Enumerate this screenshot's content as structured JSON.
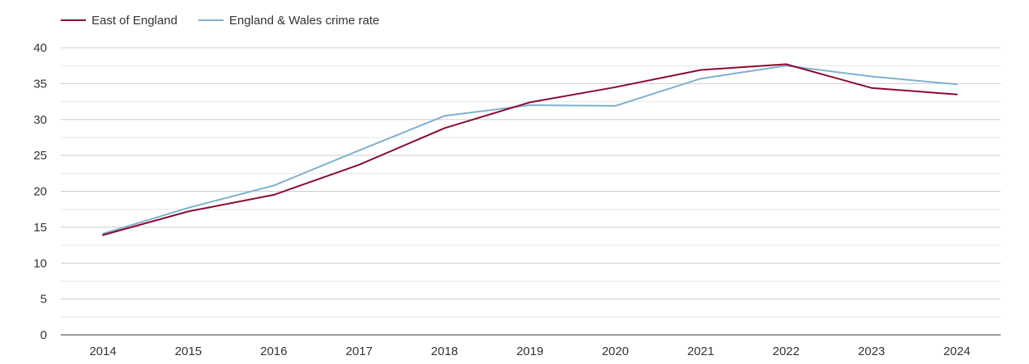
{
  "chart_data": {
    "type": "line",
    "title": "",
    "xlabel": "",
    "ylabel": "",
    "x": [
      "2014",
      "2015",
      "2016",
      "2017",
      "2018",
      "2019",
      "2020",
      "2021",
      "2022",
      "2023",
      "2024"
    ],
    "ylim": [
      0,
      40
    ],
    "yticks": [
      0,
      5,
      10,
      15,
      20,
      25,
      30,
      35,
      40
    ],
    "grid": true,
    "legend_position": "top-left",
    "series": [
      {
        "name": "East of England",
        "color": "#8b0a2f",
        "values": [
          13.9,
          17.2,
          19.5,
          23.7,
          28.8,
          32.4,
          34.5,
          36.9,
          37.7,
          34.4,
          33.5
        ]
      },
      {
        "name": "England & Wales crime rate",
        "color": "#7eb0cf",
        "values": [
          14.1,
          17.7,
          20.8,
          25.7,
          30.5,
          32.0,
          31.9,
          35.7,
          37.5,
          36.0,
          34.9
        ]
      }
    ]
  }
}
